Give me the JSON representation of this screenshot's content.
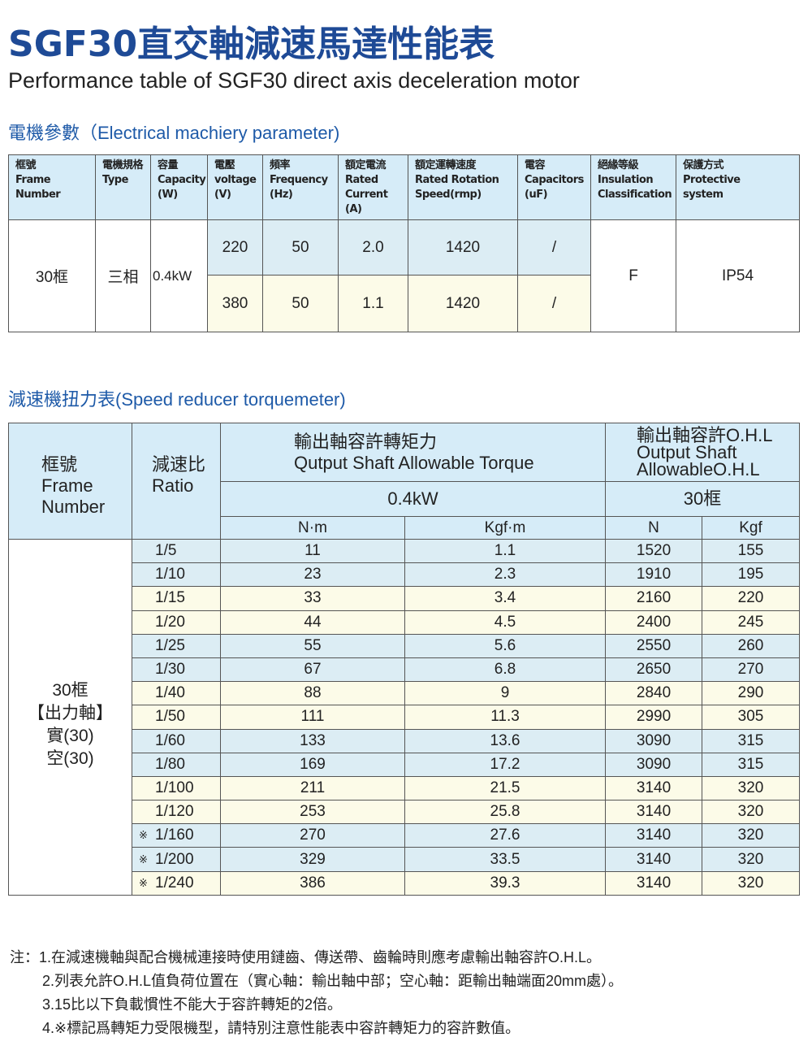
{
  "title": "SGF30直交軸減速馬達性能表",
  "subtitle": "Performance table of SGF30 direct axis deceleration motor",
  "electrical": {
    "heading": "電機參數（Electrical machiery parameter)",
    "headers": [
      [
        "框號",
        "Frame",
        "Number"
      ],
      [
        "電機規格",
        "Type"
      ],
      [
        "容量",
        "Capacity",
        "(W)"
      ],
      [
        "電壓",
        "voltage",
        "(V)"
      ],
      [
        "頻率",
        "Frequency",
        "(Hz)"
      ],
      [
        "額定電流",
        "Rated",
        "Current",
        "(A)"
      ],
      [
        "額定運轉速度",
        "Rated Rotation",
        "Speed(rmp)"
      ],
      [
        "電容",
        "Capacitors",
        "(uF)"
      ],
      [
        "絕緣等級",
        "Insulation",
        "Classification"
      ],
      [
        "保護方式",
        "Protective",
        "system"
      ]
    ],
    "frame": "30框",
    "type": "三相",
    "capacity": "0.4kW",
    "rows": [
      {
        "voltage": "220",
        "frequency": "50",
        "current": "2.0",
        "speed": "1420",
        "capacitor": "/"
      },
      {
        "voltage": "380",
        "frequency": "50",
        "current": "1.1",
        "speed": "1420",
        "capacitor": "/"
      }
    ],
    "insulation": "F",
    "protection": "IP54"
  },
  "reducer": {
    "heading": "減速機扭力表(Speed reducer torquemeter)",
    "frame_header": [
      "框號",
      "Frame",
      "Number"
    ],
    "ratio_header": [
      "減速比",
      "Ratio"
    ],
    "torque_header": [
      "輸出軸容許轉矩力",
      "Qutput Shaft Allowable Torque"
    ],
    "ohl_header": [
      "輸出軸容許O.H.L",
      "Output Shaft",
      "AllowableO.H.L"
    ],
    "power": "0.4kW",
    "ohl_frame": "30框",
    "units": [
      "N·m",
      "Kgf·m",
      "N",
      "Kgf"
    ],
    "frame_label": [
      "30框",
      "【出力軸】",
      "實(30)",
      "空(30)"
    ],
    "row_colors": {
      "blue": "#dcedf4",
      "yellow": "#fcfbe8",
      "header": "#d6ecf8"
    },
    "rows": [
      {
        "mark": "",
        "ratio": "1/5",
        "nm": "11",
        "kgfm": "1.1",
        "n": "1520",
        "kgf": "155"
      },
      {
        "mark": "",
        "ratio": "1/10",
        "nm": "23",
        "kgfm": "2.3",
        "n": "1910",
        "kgf": "195"
      },
      {
        "mark": "",
        "ratio": "1/15",
        "nm": "33",
        "kgfm": "3.4",
        "n": "2160",
        "kgf": "220"
      },
      {
        "mark": "",
        "ratio": "1/20",
        "nm": "44",
        "kgfm": "4.5",
        "n": "2400",
        "kgf": "245"
      },
      {
        "mark": "",
        "ratio": "1/25",
        "nm": "55",
        "kgfm": "5.6",
        "n": "2550",
        "kgf": "260"
      },
      {
        "mark": "",
        "ratio": "1/30",
        "nm": "67",
        "kgfm": "6.8",
        "n": "2650",
        "kgf": "270"
      },
      {
        "mark": "",
        "ratio": "1/40",
        "nm": "88",
        "kgfm": "9",
        "n": "2840",
        "kgf": "290"
      },
      {
        "mark": "",
        "ratio": "1/50",
        "nm": "111",
        "kgfm": "11.3",
        "n": "2990",
        "kgf": "305"
      },
      {
        "mark": "",
        "ratio": "1/60",
        "nm": "133",
        "kgfm": "13.6",
        "n": "3090",
        "kgf": "315"
      },
      {
        "mark": "",
        "ratio": "1/80",
        "nm": "169",
        "kgfm": "17.2",
        "n": "3090",
        "kgf": "315"
      },
      {
        "mark": "",
        "ratio": "1/100",
        "nm": "211",
        "kgfm": "21.5",
        "n": "3140",
        "kgf": "320"
      },
      {
        "mark": "",
        "ratio": "1/120",
        "nm": "253",
        "kgfm": "25.8",
        "n": "3140",
        "kgf": "320"
      },
      {
        "mark": "※",
        "ratio": "1/160",
        "nm": "270",
        "kgfm": "27.6",
        "n": "3140",
        "kgf": "320"
      },
      {
        "mark": "※",
        "ratio": "1/200",
        "nm": "329",
        "kgfm": "33.5",
        "n": "3140",
        "kgf": "320"
      },
      {
        "mark": "※",
        "ratio": "1/240",
        "nm": "386",
        "kgfm": "39.3",
        "n": "3140",
        "kgf": "320"
      }
    ]
  },
  "notes": [
    "注：1.在減速機軸與配合機械連接時使用鏈齒、傳送帶、齒輪時則應考慮輸出軸容許O.H.L。",
    "2.列表允許O.H.L值負荷位置在（實心軸：輸出軸中部；空心軸：距輸出軸端面20mm處）。",
    "3.15比以下負載慣性不能大于容許轉矩的2倍。",
    "4.※標記爲轉矩力受限機型，請特別注意性能表中容許轉矩力的容許數值。"
  ]
}
